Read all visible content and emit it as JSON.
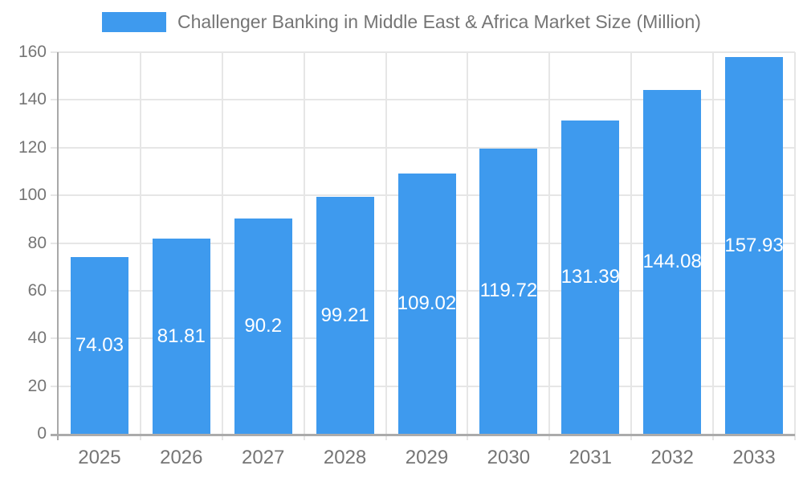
{
  "chart_data": {
    "type": "bar",
    "title": "Challenger Banking in Middle East & Africa Market Size (Million)",
    "legend_position": "top",
    "categories": [
      "2025",
      "2026",
      "2027",
      "2028",
      "2029",
      "2030",
      "2031",
      "2032",
      "2033"
    ],
    "values": [
      74.03,
      81.81,
      90.2,
      99.21,
      109.02,
      119.72,
      131.39,
      144.08,
      157.93
    ],
    "xlabel": "",
    "ylabel": "",
    "ylim": [
      0,
      160
    ],
    "yticks": [
      0,
      20,
      40,
      60,
      80,
      100,
      120,
      140,
      160
    ],
    "grid": true,
    "colors": {
      "bar": "#3e9aee",
      "text": "#757575",
      "grid": "#e6e6e6",
      "axis": "#ababab",
      "bar_label": "#ffffff",
      "background": "#ffffff"
    }
  }
}
